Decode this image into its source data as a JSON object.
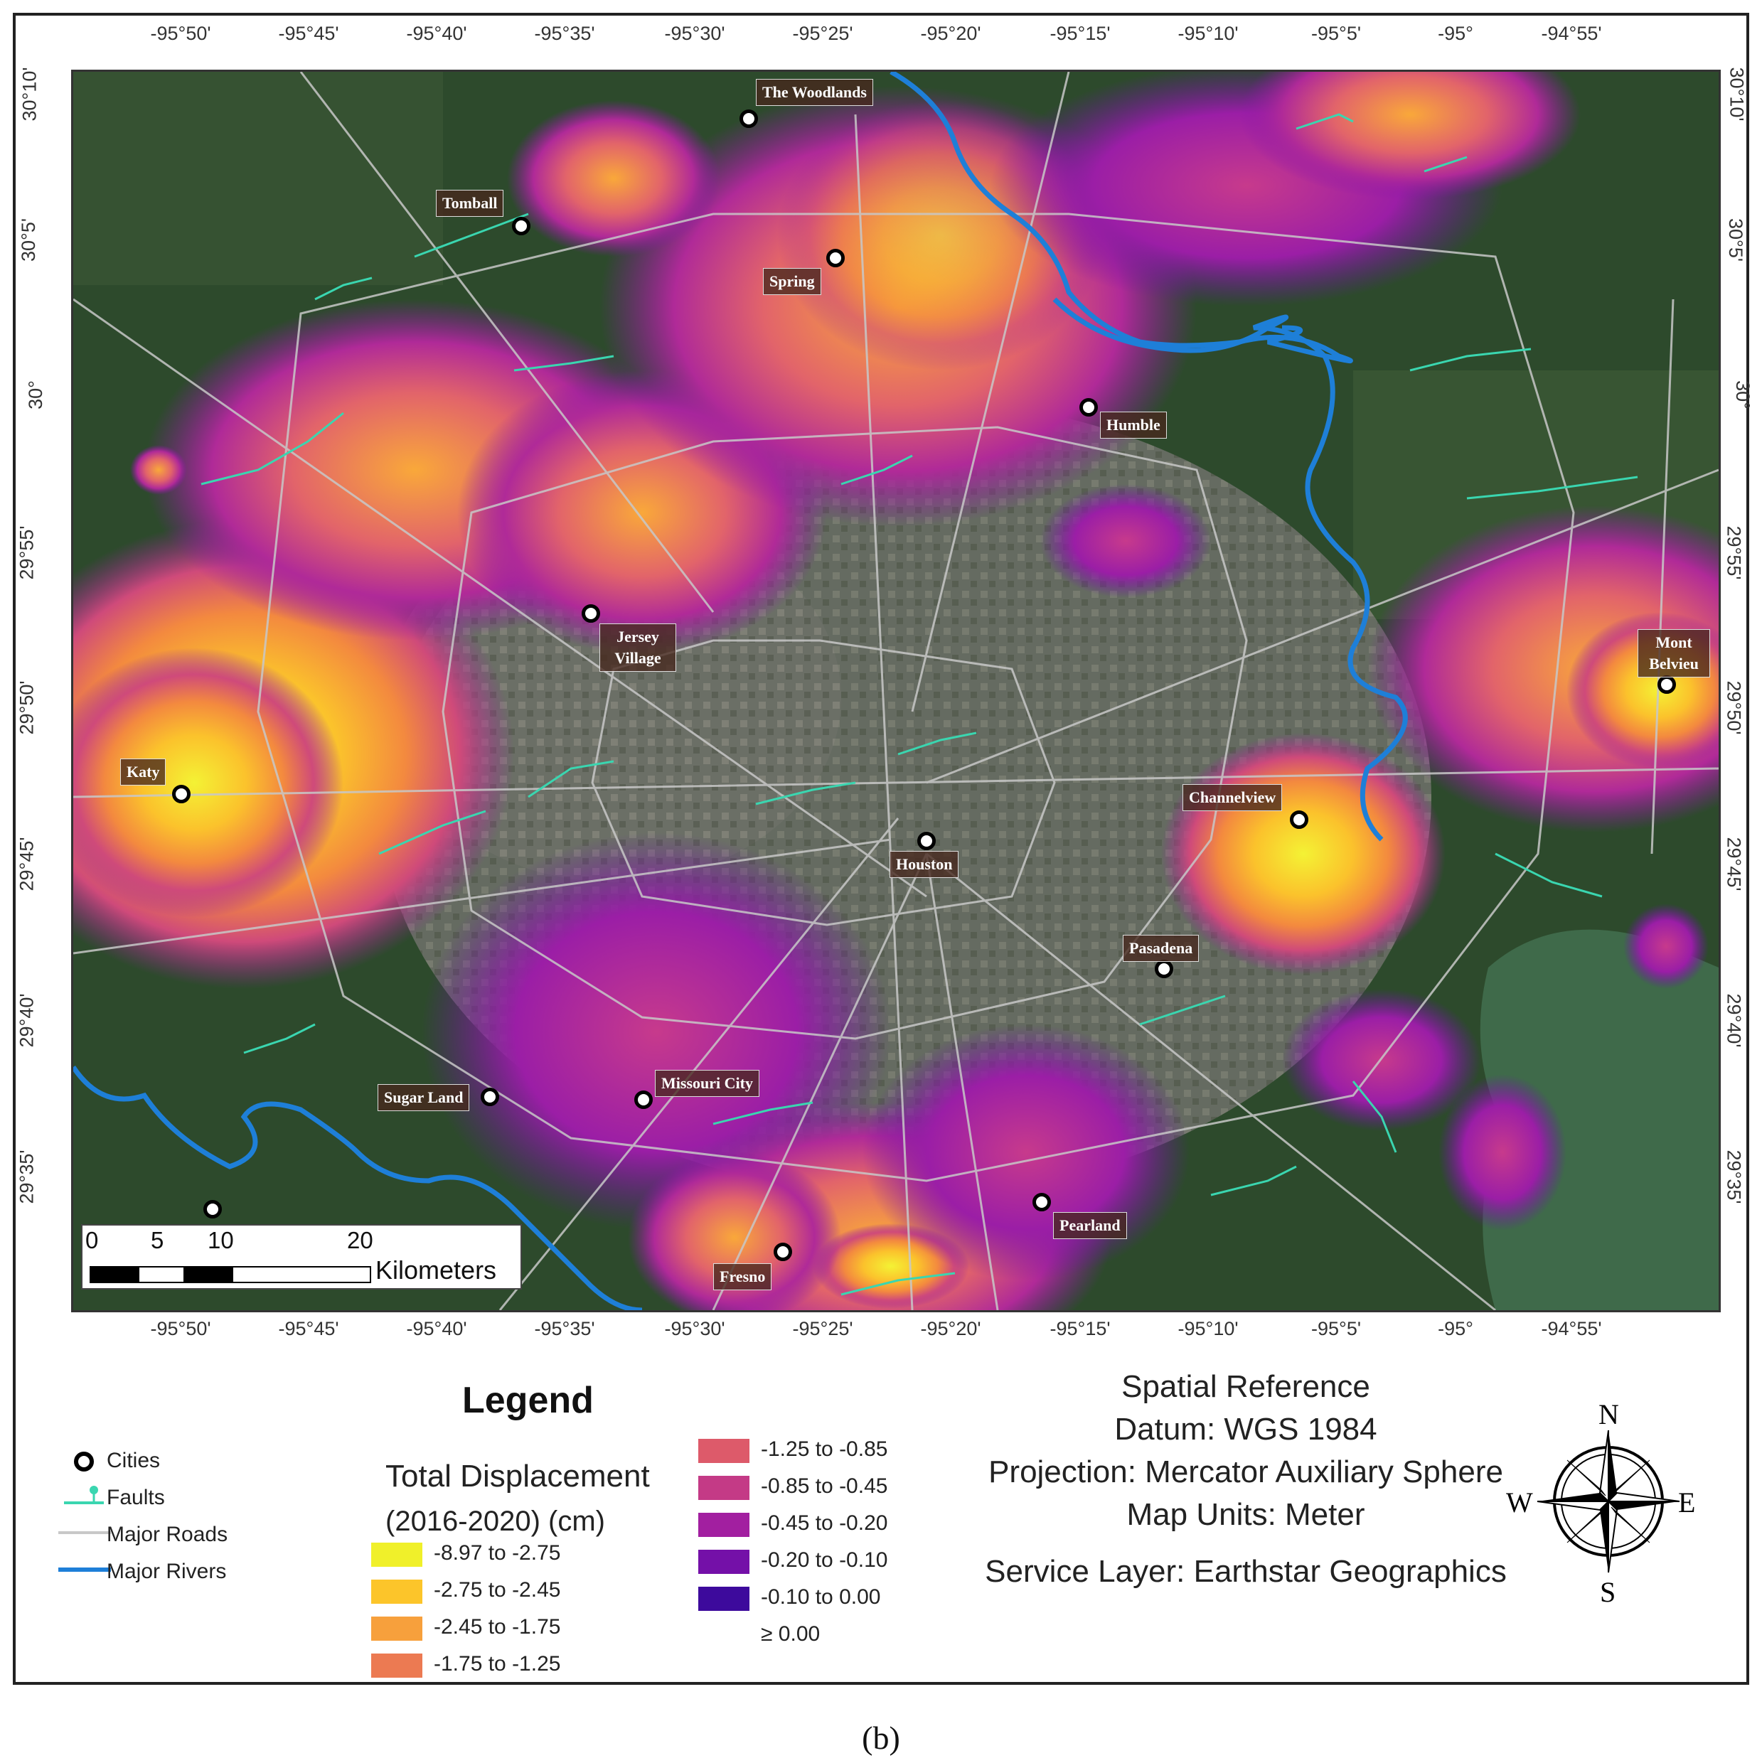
{
  "map": {
    "top_ticks": [
      "-95°50'",
      "-95°45'",
      "-95°40'",
      "-95°35'",
      "-95°30'",
      "-95°25'",
      "-95°20'",
      "-95°15'",
      "-95°10'",
      "-95°5'",
      "-95°",
      "-94°55'"
    ],
    "bottom_ticks": [
      "-95°50'",
      "-95°45'",
      "-95°40'",
      "-95°35'",
      "-95°30'",
      "-95°25'",
      "-95°20'",
      "-95°15'",
      "-95°10'",
      "-95°5'",
      "-95°",
      "-94°55'"
    ],
    "left_ticks": [
      "30°10'",
      "30°5'",
      "30°",
      "29°55'",
      "29°50'",
      "29°45'",
      "29°40'",
      "29°35'"
    ],
    "right_ticks": [
      "30°10'",
      "30°5'",
      "30°",
      "29°55'",
      "29°50'",
      "29°45'",
      "29°40'",
      "29°35'"
    ],
    "cities": [
      {
        "name": "The Woodlands"
      },
      {
        "name": "Tomball"
      },
      {
        "name": "Spring"
      },
      {
        "name": "Humble"
      },
      {
        "name": "Jersey Village"
      },
      {
        "name": "Mont Belvieu"
      },
      {
        "name": "Katy"
      },
      {
        "name": "Channelview"
      },
      {
        "name": "Houston"
      },
      {
        "name": "Pasadena"
      },
      {
        "name": "Sugar Land"
      },
      {
        "name": "Missouri City"
      },
      {
        "name": "Pearland"
      },
      {
        "name": "Fresno"
      }
    ]
  },
  "scalebar": {
    "ticks": [
      "0",
      "5",
      "10",
      "20"
    ],
    "unit": "Kilometers"
  },
  "legend": {
    "title": "Legend",
    "items": [
      {
        "label": "Cities",
        "icon": "city-point-icon"
      },
      {
        "label": "Faults",
        "icon": "fault-line-icon"
      },
      {
        "label": "Major Roads",
        "icon": "road-line-icon"
      },
      {
        "label": "Major Rivers",
        "icon": "river-line-icon"
      }
    ],
    "displacement_title": "Total Displacement",
    "displacement_units": "(2016-2020) (cm)",
    "classes": [
      {
        "label": "-8.97 to -2.75",
        "color": "#f0f02a"
      },
      {
        "label": "-2.75 to -2.45",
        "color": "#fcc52a"
      },
      {
        "label": "-2.45 to -1.75",
        "color": "#f7a03c"
      },
      {
        "label": "-1.75 to -1.25",
        "color": "#ec7a52"
      },
      {
        "label": "-1.25 to -0.85",
        "color": "#dd5a6a"
      },
      {
        "label": "-0.85 to -0.45",
        "color": "#c43a86"
      },
      {
        "label": "-0.45 to -0.20",
        "color": "#a21fa0"
      },
      {
        "label": "-0.20 to -0.10",
        "color": "#7410a8"
      },
      {
        "label": "-0.10 to 0.00",
        "color": "#3d0a9c"
      },
      {
        "label": "≥ 0.00",
        "color": "#ffffff"
      }
    ]
  },
  "spatial_reference": {
    "title": "Spatial Reference",
    "datum": "Datum: WGS 1984",
    "projection": "Projection: Mercator Auxiliary Sphere",
    "units": "Map Units: Meter",
    "service": "Service Layer: Earthstar Geographics"
  },
  "compass": {
    "n": "N",
    "s": "S",
    "e": "E",
    "w": "W"
  },
  "caption": "(b)",
  "colors": {
    "river": "#1e7fd8",
    "fault": "#3ad6b0",
    "road": "#c8c8c8",
    "basemap_green": "#2a4a2a",
    "urban_gray": "#7a7a72",
    "water": "#3f6a4a"
  }
}
